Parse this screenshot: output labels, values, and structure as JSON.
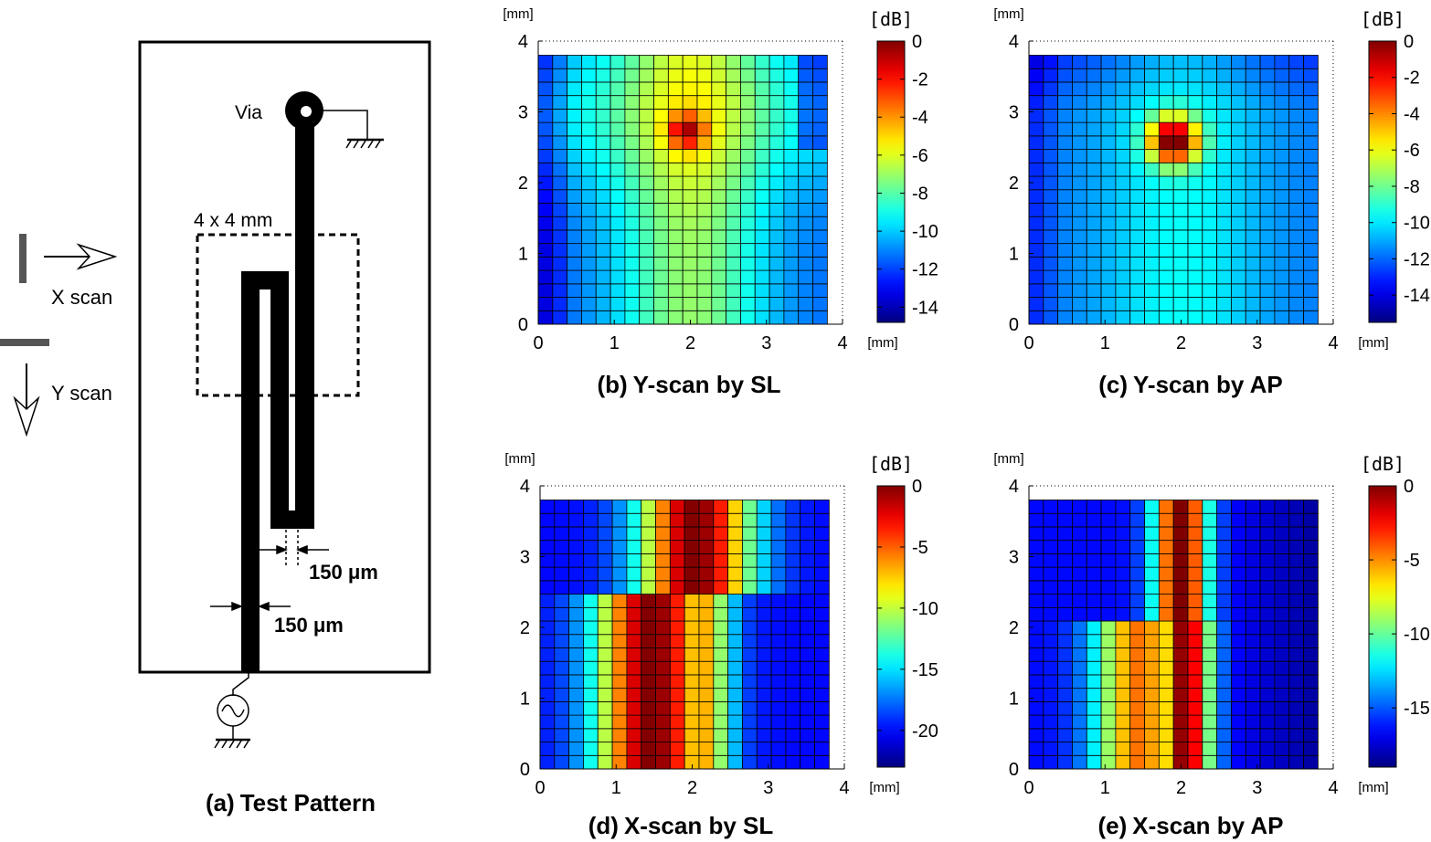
{
  "test_pattern": {
    "title_tag": "(a)",
    "title_text": "Test Pattern",
    "via_label": "Via",
    "area_label": "4 x 4 mm",
    "x_scan_label": "X scan",
    "y_scan_label": "Y scan",
    "width_label_1": "150 μm",
    "width_label_2": "150 μm"
  },
  "chart_data": [
    {
      "id": "b",
      "type": "heatmap",
      "title_tag": "(b)",
      "title": "Y-scan by SL",
      "x_unit": "[mm]",
      "y_unit": "[mm]",
      "cbar_unit": "[dB]",
      "xlim": [
        0,
        4
      ],
      "ylim": [
        0,
        4
      ],
      "xticks": [
        "0",
        "1",
        "2",
        "3",
        "4"
      ],
      "yticks": [
        "0",
        "1",
        "2",
        "3",
        "4"
      ],
      "clim": [
        -14.8,
        0
      ],
      "cbar_ticks": [
        "0",
        "-2",
        "-4",
        "-6",
        "-8",
        "-10",
        "-12",
        "-14"
      ],
      "cbar_tick_values": [
        0,
        -2,
        -4,
        -6,
        -8,
        -10,
        -12,
        -14
      ],
      "grid": "20x20 cells covering 0–3.8 mm"
    },
    {
      "id": "c",
      "type": "heatmap",
      "title_tag": "(c)",
      "title": "Y-scan by AP",
      "x_unit": "[mm]",
      "y_unit": "[mm]",
      "cbar_unit": "[dB]",
      "xlim": [
        0,
        4
      ],
      "ylim": [
        0,
        4
      ],
      "xticks": [
        "0",
        "1",
        "2",
        "3",
        "4"
      ],
      "yticks": [
        "0",
        "1",
        "2",
        "3",
        "4"
      ],
      "clim": [
        -15.5,
        0
      ],
      "cbar_ticks": [
        "0",
        "-2",
        "-4",
        "-6",
        "-8",
        "-10",
        "-12",
        "-14"
      ],
      "cbar_tick_values": [
        0,
        -2,
        -4,
        -6,
        -8,
        -10,
        -12,
        -14
      ],
      "grid": "20x20 cells covering 0–3.8 mm"
    },
    {
      "id": "d",
      "type": "heatmap",
      "title_tag": "(d)",
      "title": "X-scan by SL",
      "x_unit": "[mm]",
      "y_unit": "[mm]",
      "cbar_unit": "[dB]",
      "xlim": [
        0,
        4
      ],
      "ylim": [
        0,
        4
      ],
      "xticks": [
        "0",
        "1",
        "2",
        "3",
        "4"
      ],
      "yticks": [
        "0",
        "1",
        "2",
        "3",
        "4"
      ],
      "clim": [
        -23,
        0
      ],
      "cbar_ticks": [
        "0",
        "-5",
        "-10",
        "-15",
        "-20"
      ],
      "cbar_tick_values": [
        0,
        -5,
        -10,
        -15,
        -20
      ],
      "grid": "20x20 cells covering 0–3.8 mm"
    },
    {
      "id": "e",
      "type": "heatmap",
      "title_tag": "(e)",
      "title": "X-scan by AP",
      "x_unit": "[mm]",
      "y_unit": "[mm]",
      "cbar_unit": "[dB]",
      "xlim": [
        0,
        4
      ],
      "ylim": [
        0,
        4
      ],
      "xticks": [
        "0",
        "1",
        "2",
        "3",
        "4"
      ],
      "yticks": [
        "0",
        "1",
        "2",
        "3",
        "4"
      ],
      "clim": [
        -19,
        0
      ],
      "cbar_ticks": [
        "0",
        "-5",
        "-10",
        "-15"
      ],
      "cbar_tick_values": [
        0,
        -5,
        -10,
        -15
      ],
      "grid": "20x20 cells covering 0–3.8 mm"
    }
  ]
}
